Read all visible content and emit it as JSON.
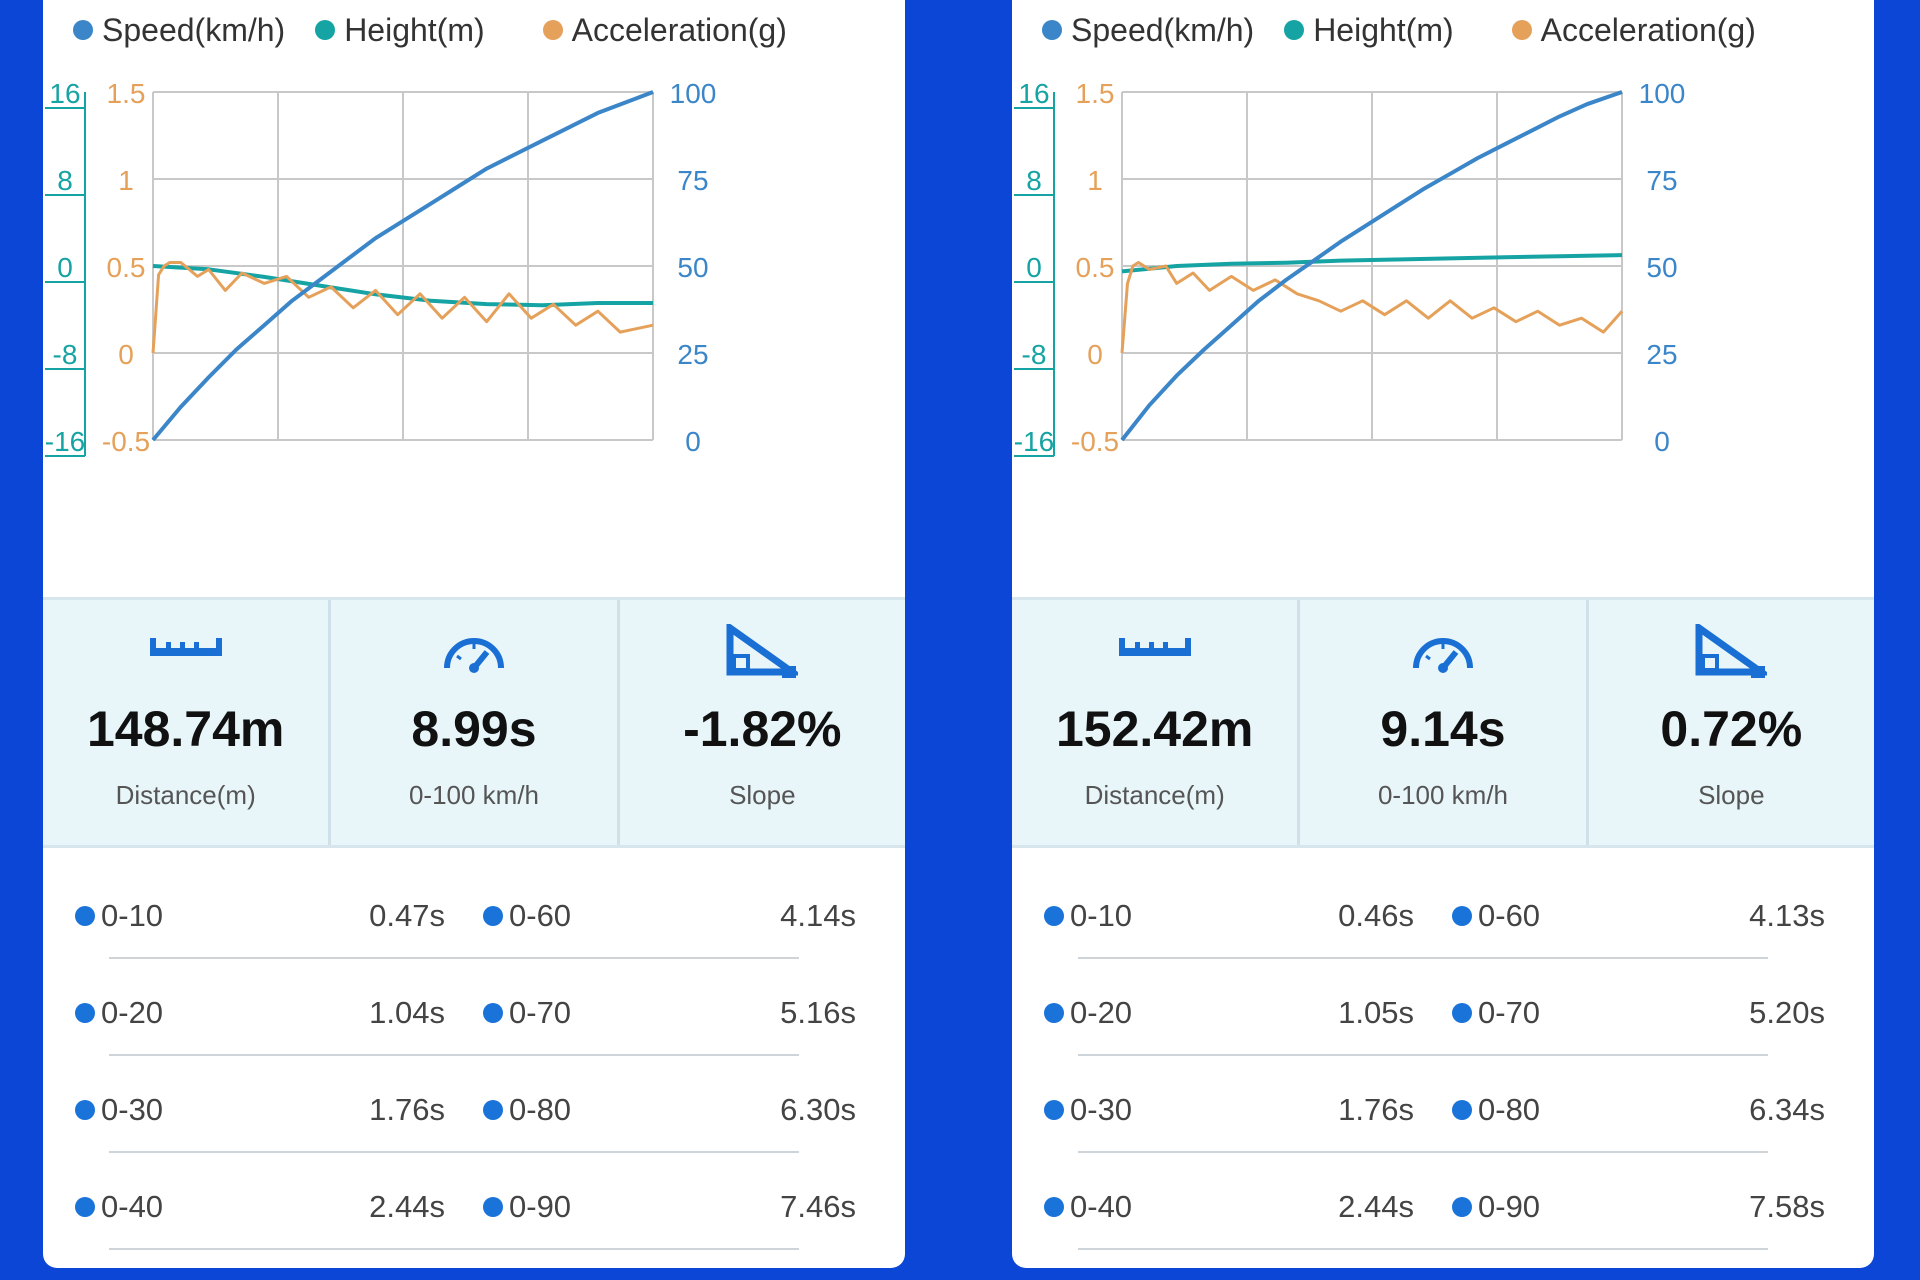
{
  "colors": {
    "speed": "#3b86c8",
    "height": "#16a3a3",
    "acceleration": "#e5a15a",
    "grid": "#c8c8c8",
    "background": "#0b46d6",
    "stats_background": "#e8f6fa"
  },
  "legend": {
    "speed": "Speed(km/h)",
    "height": "Height(m)",
    "acceleration": "Acceleration(g)"
  },
  "axes": {
    "height_ticks": [
      "16",
      "8",
      "0",
      "-8",
      "-16"
    ],
    "accel_ticks": [
      "1.5",
      "1",
      "0.5",
      "0",
      "-0.5"
    ],
    "speed_ticks": [
      "100",
      "75",
      "50",
      "25",
      "0"
    ]
  },
  "runs": [
    {
      "stats": [
        {
          "icon": "ruler-icon",
          "value": "148.74m",
          "label": "Distance(m)"
        },
        {
          "icon": "speedometer-icon",
          "value": "8.99s",
          "label": "0-100 km/h"
        },
        {
          "icon": "slope-icon",
          "value": "-1.82%",
          "label": "Slope"
        }
      ],
      "splits": [
        {
          "left_label": "0-10",
          "left_time": "0.47s",
          "right_label": "0-60",
          "right_time": "4.14s"
        },
        {
          "left_label": "0-20",
          "left_time": "1.04s",
          "right_label": "0-70",
          "right_time": "5.16s"
        },
        {
          "left_label": "0-30",
          "left_time": "1.76s",
          "right_label": "0-80",
          "right_time": "6.30s"
        },
        {
          "left_label": "0-40",
          "left_time": "2.44s",
          "right_label": "0-90",
          "right_time": "7.46s"
        }
      ],
      "chart_data": {
        "type": "line",
        "x_range": [
          0,
          8.99
        ],
        "axes": {
          "left_outer": {
            "label": "Height(m)",
            "range": [
              -16,
              16
            ],
            "ticks": [
              -16,
              -8,
              0,
              8,
              16
            ]
          },
          "left_inner": {
            "label": "Acceleration(g)",
            "range": [
              -0.5,
              1.5
            ],
            "ticks": [
              -0.5,
              0,
              0.5,
              1,
              1.5
            ]
          },
          "right": {
            "label": "Speed(km/h)",
            "range": [
              0,
              100
            ],
            "ticks": [
              0,
              25,
              50,
              75,
              100
            ]
          }
        },
        "grid": true,
        "legend": "top",
        "series": [
          {
            "name": "Speed(km/h)",
            "axis": "right",
            "x": [
              0,
              0.5,
              1,
              1.5,
              2,
              2.5,
              3,
              3.5,
              4,
              4.5,
              5,
              5.5,
              6,
              6.5,
              7,
              7.5,
              8,
              8.5,
              8.99
            ],
            "y": [
              0,
              9.5,
              18,
              26,
              33,
              40,
              46,
              52,
              58,
              63,
              68,
              73,
              78,
              82,
              86,
              90,
              94,
              97,
              100
            ]
          },
          {
            "name": "Height(m)",
            "axis": "left_outer",
            "x": [
              0,
              1,
              2,
              3,
              4,
              5,
              6,
              7,
              8,
              8.99
            ],
            "y": [
              0,
              -0.3,
              -1,
              -1.8,
              -2.6,
              -3.2,
              -3.5,
              -3.6,
              -3.4,
              -3.4
            ]
          },
          {
            "name": "Acceleration(g)",
            "axis": "left_inner",
            "x": [
              0,
              0.1,
              0.2,
              0.3,
              0.5,
              0.8,
              1,
              1.3,
              1.6,
              2,
              2.4,
              2.8,
              3.2,
              3.6,
              4,
              4.4,
              4.8,
              5.2,
              5.6,
              6,
              6.4,
              6.8,
              7.2,
              7.6,
              8,
              8.4,
              8.99
            ],
            "y": [
              0,
              0.45,
              0.5,
              0.52,
              0.52,
              0.44,
              0.48,
              0.36,
              0.46,
              0.4,
              0.44,
              0.32,
              0.38,
              0.26,
              0.36,
              0.22,
              0.34,
              0.2,
              0.32,
              0.18,
              0.34,
              0.2,
              0.28,
              0.16,
              0.24,
              0.12,
              0.16
            ]
          }
        ]
      }
    },
    {
      "stats": [
        {
          "icon": "ruler-icon",
          "value": "152.42m",
          "label": "Distance(m)"
        },
        {
          "icon": "speedometer-icon",
          "value": "9.14s",
          "label": "0-100 km/h"
        },
        {
          "icon": "slope-icon",
          "value": "0.72%",
          "label": "Slope"
        }
      ],
      "splits": [
        {
          "left_label": "0-10",
          "left_time": "0.46s",
          "right_label": "0-60",
          "right_time": "4.13s"
        },
        {
          "left_label": "0-20",
          "left_time": "1.05s",
          "right_label": "0-70",
          "right_time": "5.20s"
        },
        {
          "left_label": "0-30",
          "left_time": "1.76s",
          "right_label": "0-80",
          "right_time": "6.34s"
        },
        {
          "left_label": "0-40",
          "left_time": "2.44s",
          "right_label": "0-90",
          "right_time": "7.58s"
        }
      ],
      "chart_data": {
        "type": "line",
        "x_range": [
          0,
          9.14
        ],
        "axes": {
          "left_outer": {
            "label": "Height(m)",
            "range": [
              -16,
              16
            ],
            "ticks": [
              -16,
              -8,
              0,
              8,
              16
            ]
          },
          "left_inner": {
            "label": "Acceleration(g)",
            "range": [
              -0.5,
              1.5
            ],
            "ticks": [
              -0.5,
              0,
              0.5,
              1,
              1.5
            ]
          },
          "right": {
            "label": "Speed(km/h)",
            "range": [
              0,
              100
            ],
            "ticks": [
              0,
              25,
              50,
              75,
              100
            ]
          }
        },
        "grid": true,
        "legend": "top",
        "series": [
          {
            "name": "Speed(km/h)",
            "axis": "right",
            "x": [
              0,
              0.5,
              1,
              1.5,
              2,
              2.5,
              3,
              3.5,
              4,
              4.5,
              5,
              5.5,
              6,
              6.5,
              7,
              7.5,
              8,
              8.5,
              9.14
            ],
            "y": [
              0,
              10,
              18.5,
              26,
              33,
              40,
              46,
              51.5,
              57,
              62,
              67,
              72,
              76.5,
              81,
              85,
              89,
              93,
              96.5,
              100
            ]
          },
          {
            "name": "Height(m)",
            "axis": "left_outer",
            "x": [
              0,
              1,
              2,
              3,
              4,
              5,
              6,
              7,
              8,
              9.14
            ],
            "y": [
              -0.5,
              0,
              0.2,
              0.3,
              0.5,
              0.6,
              0.7,
              0.8,
              0.9,
              1
            ]
          },
          {
            "name": "Acceleration(g)",
            "axis": "left_inner",
            "x": [
              0,
              0.1,
              0.2,
              0.3,
              0.5,
              0.8,
              1,
              1.3,
              1.6,
              2,
              2.4,
              2.8,
              3.2,
              3.6,
              4,
              4.4,
              4.8,
              5.2,
              5.6,
              6,
              6.4,
              6.8,
              7.2,
              7.6,
              8,
              8.4,
              8.8,
              9.14
            ],
            "y": [
              0,
              0.4,
              0.5,
              0.52,
              0.48,
              0.5,
              0.4,
              0.46,
              0.36,
              0.44,
              0.36,
              0.42,
              0.34,
              0.3,
              0.24,
              0.3,
              0.22,
              0.3,
              0.2,
              0.3,
              0.2,
              0.26,
              0.18,
              0.24,
              0.16,
              0.2,
              0.12,
              0.24
            ]
          }
        ]
      }
    }
  ]
}
